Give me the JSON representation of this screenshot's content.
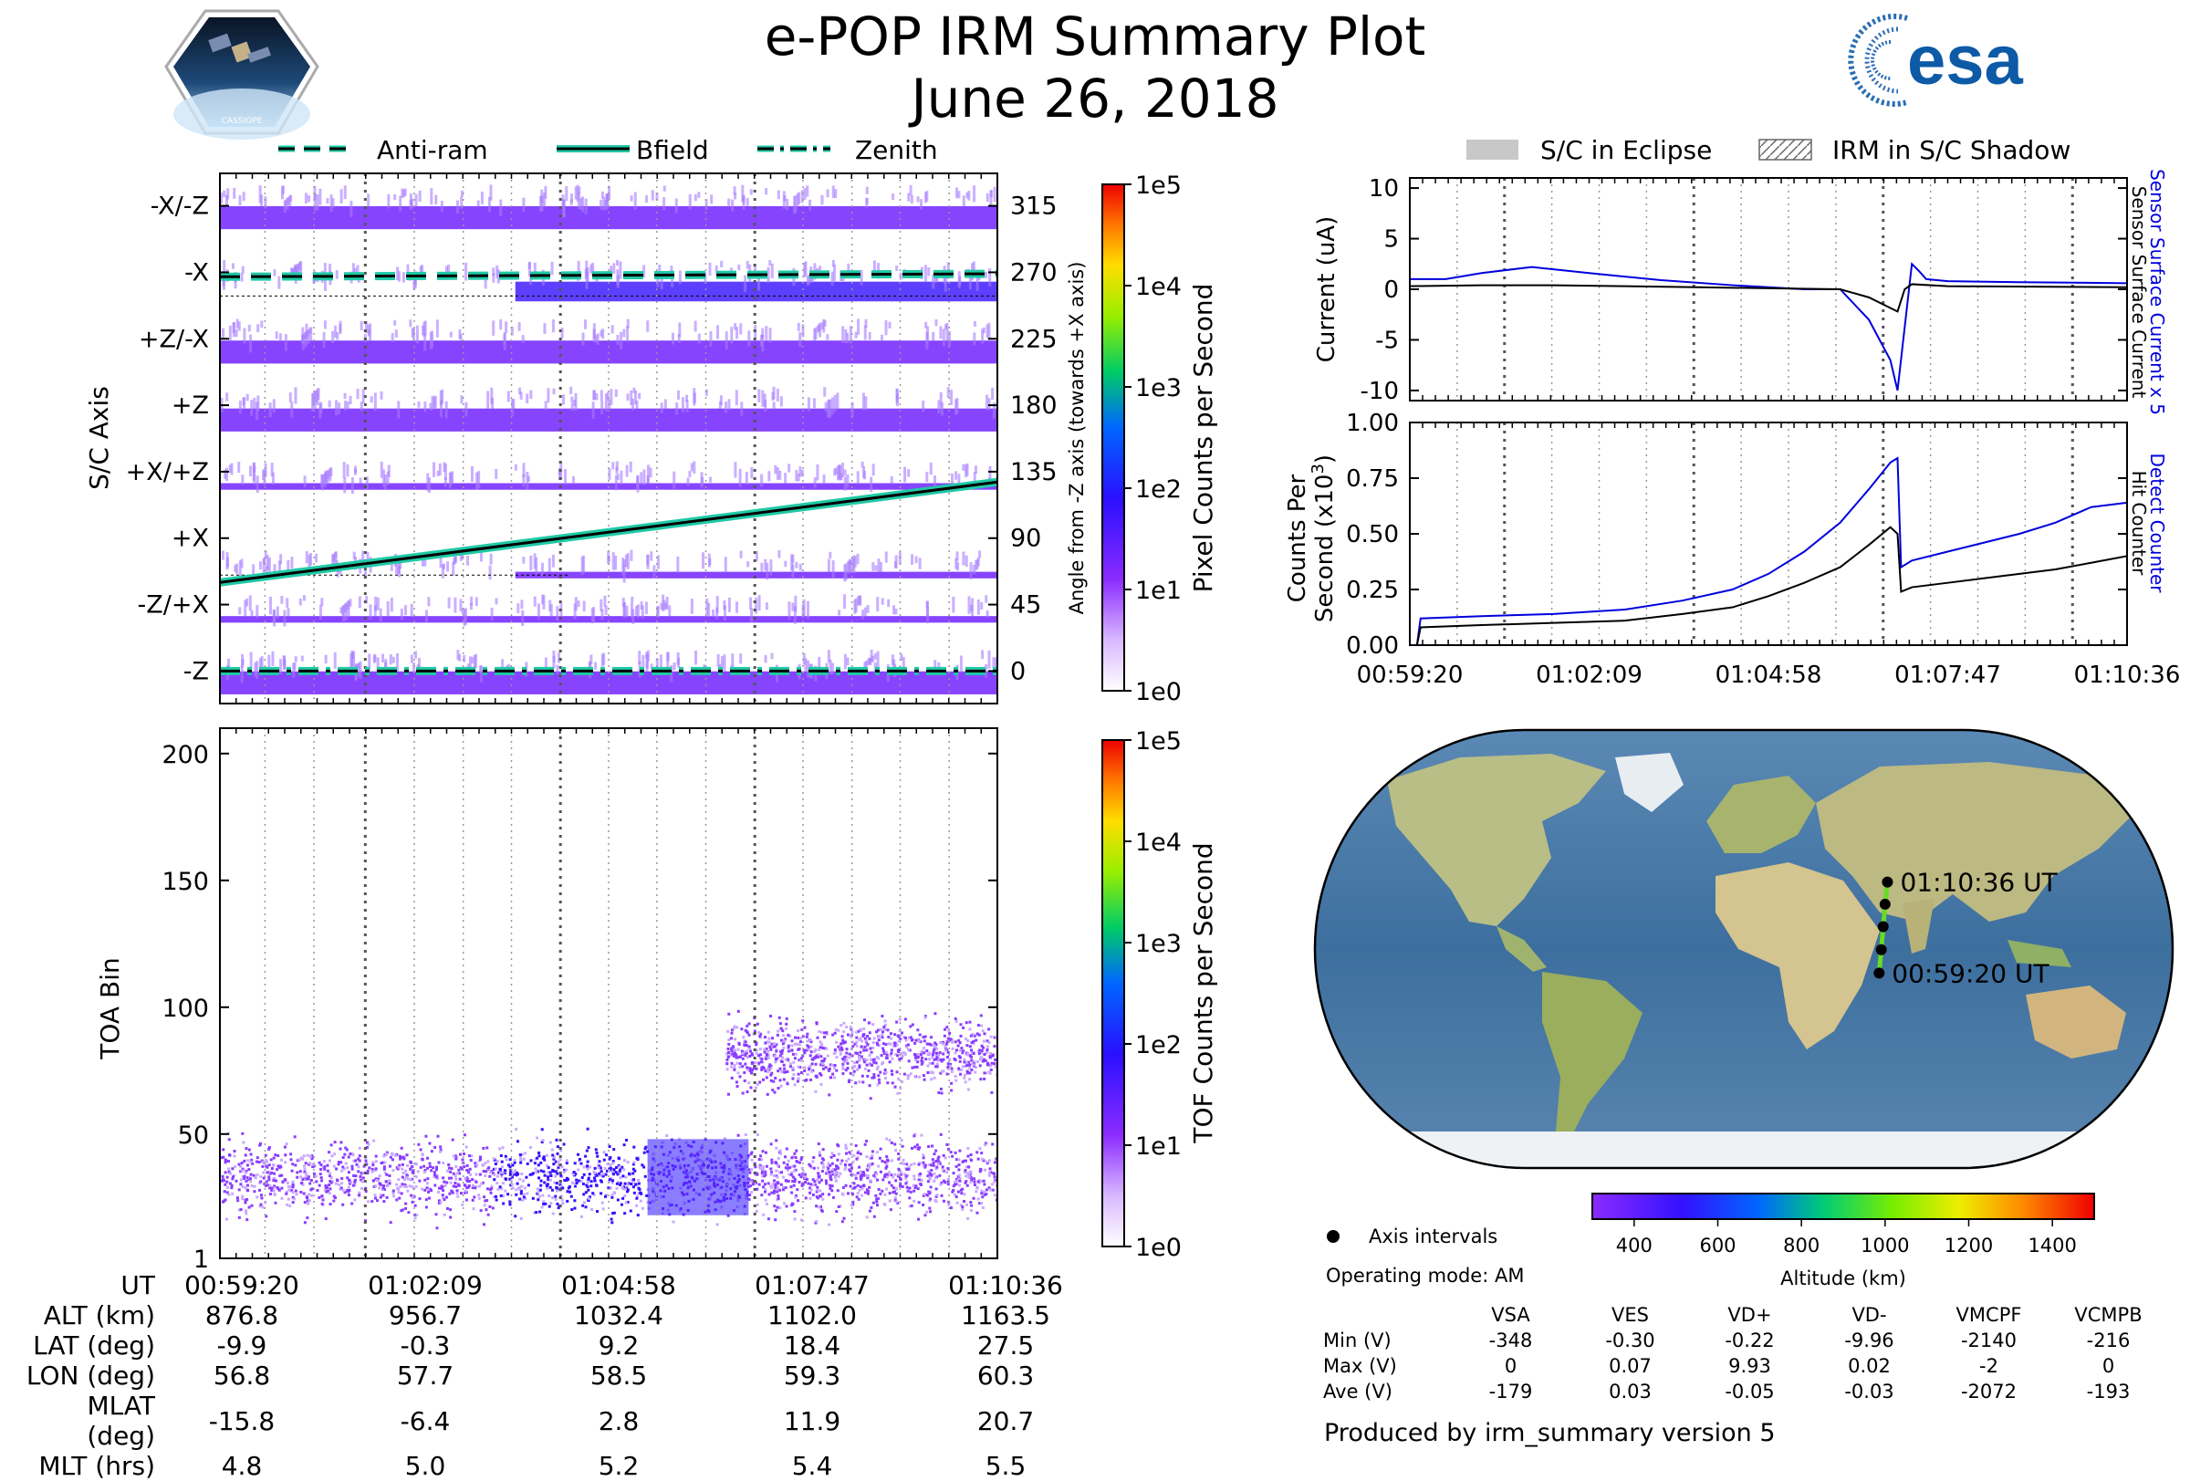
{
  "header": {
    "title": "e-POP IRM Summary Plot",
    "date": "June 26, 2018",
    "mission_logo": "CASSIOPE",
    "agency_logo": "esa"
  },
  "legend_top_left": [
    "Anti-ram",
    "Bfield",
    "Zenith"
  ],
  "legend_top_right": [
    "S/C in Eclipse",
    "IRM in S/C Shadow"
  ],
  "colors": {
    "anti_ram": "#20c9a6",
    "current_blue": "#0000dd",
    "map_track": "#66dd22"
  },
  "chart_data": [
    {
      "type": "heatmap",
      "name": "pixel-counts",
      "ylabel": "S/C Axis",
      "y_tick_labels": [
        "-X/-Z",
        "-X",
        "+Z/-X",
        "+Z",
        "+X/+Z",
        "+X",
        "-Z/+X",
        "-Z"
      ],
      "y2label": "Angle from -Z axis (towards +X axis)",
      "y2_ticks": [
        315,
        270,
        225,
        180,
        135,
        90,
        45,
        0
      ],
      "ylim": [
        -22,
        337
      ],
      "colorbar": {
        "label": "Pixel Counts per Second",
        "ticks": [
          "1e5",
          "1e4",
          "1e3",
          "1e2",
          "1e1",
          "1e0"
        ]
      },
      "lines": [
        {
          "name": "Anti-ram",
          "style": "dashed",
          "y_start": 267,
          "y_end": 269
        },
        {
          "name": "Bfield",
          "style": "solid",
          "y_start": 60,
          "y_end": 128
        },
        {
          "name": "Zenith",
          "style": "dashdot",
          "y_start": 0,
          "y_end": 0
        }
      ]
    },
    {
      "type": "heatmap",
      "name": "tof-counts",
      "ylabel": "TOA Bin",
      "y_ticks": [
        1,
        50,
        100,
        150,
        200
      ],
      "ylim": [
        1,
        210
      ],
      "colorbar": {
        "label": "TOF Counts per Second",
        "ticks": [
          "1e5",
          "1e4",
          "1e3",
          "1e2",
          "1e1",
          "1e0"
        ]
      },
      "bands": [
        {
          "t_start": 0.0,
          "t_end": 1.0,
          "center": 33,
          "spread": 13
        },
        {
          "t_start": 0.65,
          "t_end": 1.0,
          "center": 82,
          "spread": 12
        }
      ]
    },
    {
      "type": "line",
      "name": "current",
      "ylabel": "Current (uA)",
      "y_ticks": [
        10,
        5,
        0,
        -5,
        -10
      ],
      "ylim": [
        -11,
        11
      ],
      "series": [
        {
          "name": "Sensor Surface Current x 5",
          "color": "#0000dd",
          "x": [
            0,
            0.05,
            0.1,
            0.17,
            0.25,
            0.35,
            0.45,
            0.55,
            0.6,
            0.64,
            0.67,
            0.68,
            0.7,
            0.71,
            0.72,
            0.75,
            0.85,
            1.0
          ],
          "y": [
            1.0,
            1.0,
            1.6,
            2.2,
            1.6,
            0.9,
            0.4,
            0.0,
            0.0,
            -3.0,
            -7.0,
            -10.0,
            2.5,
            1.8,
            1.0,
            0.8,
            0.7,
            0.6
          ]
        },
        {
          "name": "Sensor Surface Current",
          "color": "#000000",
          "x": [
            0,
            0.1,
            0.2,
            0.3,
            0.4,
            0.5,
            0.6,
            0.64,
            0.68,
            0.69,
            0.7,
            0.75,
            1.0
          ],
          "y": [
            0.3,
            0.4,
            0.4,
            0.3,
            0.2,
            0.1,
            0.0,
            -0.8,
            -2.2,
            0.0,
            0.5,
            0.3,
            0.2
          ]
        }
      ]
    },
    {
      "type": "line",
      "name": "counts",
      "ylabel": "Counts Per Second (x10³)",
      "y_ticks": [
        "1.00",
        "0.75",
        "0.50",
        "0.25",
        "0.00"
      ],
      "ylim": [
        0,
        1
      ],
      "x_tick_labels": [
        "00:59:20",
        "01:02:09",
        "01:04:58",
        "01:07:47",
        "01:10:36"
      ],
      "series": [
        {
          "name": "Detect Counter",
          "color": "#0000dd",
          "x": [
            0,
            0.01,
            0.015,
            0.1,
            0.2,
            0.3,
            0.38,
            0.45,
            0.5,
            0.55,
            0.6,
            0.64,
            0.67,
            0.68,
            0.685,
            0.7,
            0.75,
            0.8,
            0.85,
            0.9,
            0.95,
            1.0
          ],
          "y": [
            0,
            0,
            0.12,
            0.13,
            0.14,
            0.16,
            0.2,
            0.25,
            0.32,
            0.42,
            0.55,
            0.7,
            0.82,
            0.84,
            0.35,
            0.38,
            0.42,
            0.46,
            0.5,
            0.55,
            0.62,
            0.64
          ]
        },
        {
          "name": "Hit Counter",
          "color": "#000000",
          "x": [
            0,
            0.01,
            0.015,
            0.1,
            0.2,
            0.3,
            0.38,
            0.45,
            0.5,
            0.55,
            0.6,
            0.64,
            0.67,
            0.68,
            0.685,
            0.7,
            0.75,
            0.8,
            0.85,
            0.9,
            0.95,
            1.0
          ],
          "y": [
            0,
            0,
            0.08,
            0.09,
            0.1,
            0.11,
            0.14,
            0.17,
            0.22,
            0.28,
            0.35,
            0.45,
            0.53,
            0.5,
            0.24,
            0.26,
            0.28,
            0.3,
            0.32,
            0.34,
            0.37,
            0.4
          ]
        }
      ]
    }
  ],
  "current_right_labels": [
    "Sensor Surface Current x 5",
    "Sensor Surface Current"
  ],
  "counts_right_labels": [
    "Detect Counter",
    "Hit Counter"
  ],
  "map": {
    "start_label": "00:59:20 UT",
    "end_label": "01:10:36 UT",
    "lon": [
      56.8,
      57.7,
      58.5,
      59.3,
      60.3
    ],
    "lat": [
      -9.9,
      -0.3,
      9.2,
      18.4,
      27.5
    ],
    "altitude_colorbar": {
      "label": "Altitude (km)",
      "ticks": [
        400,
        600,
        800,
        1000,
        1200,
        1400
      ]
    },
    "axis_intervals_label": "Axis intervals",
    "operating_mode": "Operating mode: AM"
  },
  "ephemeris": {
    "rows": [
      {
        "label": "UT",
        "values": [
          "00:59:20",
          "01:02:09",
          "01:04:58",
          "01:07:47",
          "01:10:36"
        ]
      },
      {
        "label": "ALT (km)",
        "values": [
          "876.8",
          "956.7",
          "1032.4",
          "1102.0",
          "1163.5"
        ]
      },
      {
        "label": "LAT (deg)",
        "values": [
          "-9.9",
          "-0.3",
          "9.2",
          "18.4",
          "27.5"
        ]
      },
      {
        "label": "LON (deg)",
        "values": [
          "56.8",
          "57.7",
          "58.5",
          "59.3",
          "60.3"
        ]
      },
      {
        "label": "MLAT (deg)",
        "values": [
          "-15.8",
          "-6.4",
          "2.8",
          "11.9",
          "20.7"
        ]
      },
      {
        "label": "MLT (hrs)",
        "values": [
          "4.8",
          "5.0",
          "5.2",
          "5.4",
          "5.5"
        ]
      }
    ]
  },
  "voltages": {
    "columns": [
      "VSA",
      "VES",
      "VD+",
      "VD-",
      "VMCPF",
      "VCMPB"
    ],
    "rows": [
      {
        "label": "Min (V)",
        "values": [
          "-348",
          "-0.30",
          "-0.22",
          "-9.96",
          "-2140",
          "-216"
        ]
      },
      {
        "label": "Max (V)",
        "values": [
          "0",
          "0.07",
          "9.93",
          "0.02",
          "-2",
          "0"
        ]
      },
      {
        "label": "Ave (V)",
        "values": [
          "-179",
          "0.03",
          "-0.05",
          "-0.03",
          "-2072",
          "-193"
        ]
      }
    ]
  },
  "footer": "Produced by irm_summary version 5"
}
